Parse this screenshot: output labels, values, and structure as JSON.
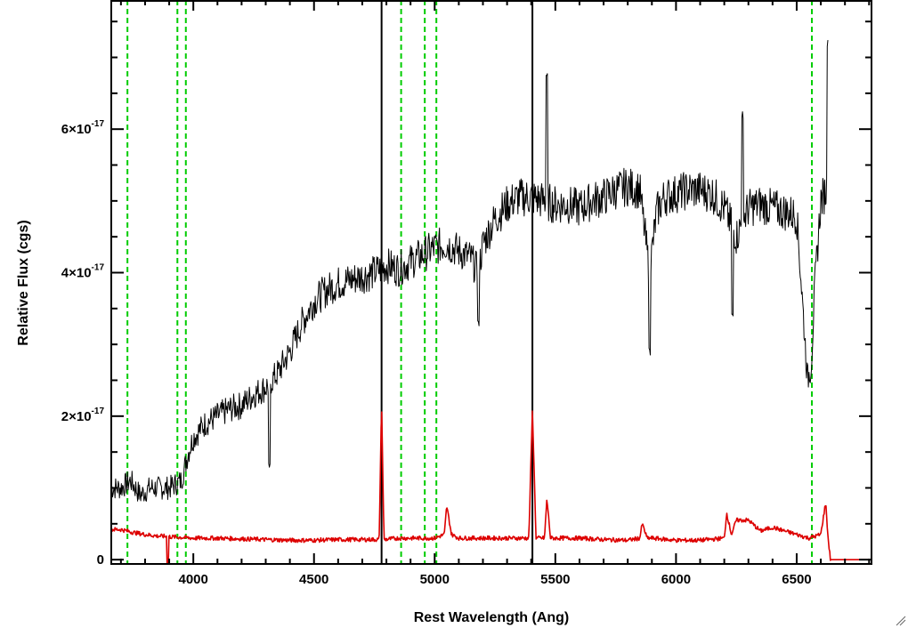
{
  "chart_data": {
    "type": "line",
    "xlabel": "Rest Wavelength (Ang)",
    "ylabel": "Relative Flux (cgs)",
    "xlim": [
      3660,
      6810
    ],
    "ylim": [
      -0.06,
      7.8
    ],
    "y_unit_exponent": -17,
    "x_ticks": [
      4000,
      4500,
      5000,
      5500,
      6000,
      6500
    ],
    "y_ticks": [
      {
        "value": 0,
        "mantissa": "0",
        "exponent": ""
      },
      {
        "value": 2,
        "mantissa": "2×10",
        "exponent": "-17"
      },
      {
        "value": 4,
        "mantissa": "4×10",
        "exponent": "-17"
      },
      {
        "value": 6,
        "mantissa": "6×10",
        "exponent": "-17"
      }
    ],
    "colors": {
      "spectrum": "#000000",
      "error": "#dd0000",
      "emission_lines": "#00cc00",
      "marker": "#000000"
    },
    "emission_line_markers": [
      3727,
      3934,
      3969,
      4861,
      4959,
      5007,
      6563
    ],
    "vertical_markers": [
      4780,
      5405
    ],
    "series": [
      {
        "role": "spectrum",
        "color": "#000000",
        "points": [
          [
            3660,
            1.0
          ],
          [
            3700,
            1.0
          ],
          [
            3740,
            1.1
          ],
          [
            3780,
            0.9
          ],
          [
            3820,
            1.0
          ],
          [
            3860,
            1.0
          ],
          [
            3900,
            1.0
          ],
          [
            3950,
            1.1
          ],
          [
            3980,
            1.5
          ],
          [
            4000,
            1.7
          ],
          [
            4050,
            1.9
          ],
          [
            4100,
            2.0
          ],
          [
            4150,
            2.1
          ],
          [
            4200,
            2.15
          ],
          [
            4250,
            2.3
          ],
          [
            4300,
            2.4
          ],
          [
            4350,
            2.6
          ],
          [
            4400,
            2.9
          ],
          [
            4450,
            3.3
          ],
          [
            4500,
            3.6
          ],
          [
            4550,
            3.75
          ],
          [
            4600,
            3.85
          ],
          [
            4650,
            3.9
          ],
          [
            4700,
            3.95
          ],
          [
            4750,
            4.0
          ],
          [
            4800,
            4.1
          ],
          [
            4850,
            4.05
          ],
          [
            4900,
            4.15
          ],
          [
            4950,
            4.25
          ],
          [
            5000,
            4.35
          ],
          [
            5050,
            4.4
          ],
          [
            5100,
            4.3
          ],
          [
            5150,
            4.2
          ],
          [
            5180,
            4.0
          ],
          [
            5200,
            4.4
          ],
          [
            5250,
            4.75
          ],
          [
            5300,
            4.95
          ],
          [
            5350,
            5.05
          ],
          [
            5400,
            5.05
          ],
          [
            5450,
            5.0
          ],
          [
            5500,
            4.95
          ],
          [
            5550,
            4.95
          ],
          [
            5600,
            4.9
          ],
          [
            5650,
            5.0
          ],
          [
            5700,
            5.05
          ],
          [
            5750,
            5.15
          ],
          [
            5800,
            5.2
          ],
          [
            5850,
            5.15
          ],
          [
            5890,
            4.0
          ],
          [
            5920,
            4.85
          ],
          [
            5950,
            5.05
          ],
          [
            6000,
            5.1
          ],
          [
            6050,
            5.15
          ],
          [
            6100,
            5.15
          ],
          [
            6150,
            5.1
          ],
          [
            6200,
            4.9
          ],
          [
            6250,
            4.5
          ],
          [
            6300,
            4.9
          ],
          [
            6350,
            4.95
          ],
          [
            6400,
            4.9
          ],
          [
            6450,
            4.85
          ],
          [
            6500,
            4.8
          ],
          [
            6520,
            3.8
          ],
          [
            6545,
            2.5
          ],
          [
            6560,
            2.7
          ],
          [
            6575,
            3.8
          ],
          [
            6600,
            5.0
          ],
          [
            6630,
            5.2
          ]
        ],
        "features": [
          {
            "x": 5465,
            "y": 6.75
          },
          {
            "x": 6275,
            "y": 6.2
          },
          {
            "x": 6630,
            "y": 7.2
          },
          {
            "x": 5890,
            "y": 2.9
          },
          {
            "x": 6235,
            "y": 3.4
          },
          {
            "x": 4316,
            "y": 1.3
          },
          {
            "x": 5180,
            "y": 3.3
          }
        ]
      },
      {
        "role": "error",
        "color": "#dd0000",
        "points": [
          [
            3660,
            0.42
          ],
          [
            3700,
            0.42
          ],
          [
            3750,
            0.38
          ],
          [
            3800,
            0.35
          ],
          [
            3850,
            0.33
          ],
          [
            3900,
            0.32
          ],
          [
            3950,
            0.31
          ],
          [
            4000,
            0.3
          ],
          [
            4100,
            0.3
          ],
          [
            4200,
            0.29
          ],
          [
            4300,
            0.28
          ],
          [
            4400,
            0.27
          ],
          [
            4500,
            0.27
          ],
          [
            4600,
            0.28
          ],
          [
            4700,
            0.28
          ],
          [
            4770,
            0.28
          ],
          [
            4780,
            2.2
          ],
          [
            4790,
            0.28
          ],
          [
            4850,
            0.3
          ],
          [
            4950,
            0.3
          ],
          [
            5000,
            0.3
          ],
          [
            5040,
            0.35
          ],
          [
            5050,
            0.75
          ],
          [
            5070,
            0.35
          ],
          [
            5100,
            0.3
          ],
          [
            5200,
            0.3
          ],
          [
            5300,
            0.3
          ],
          [
            5390,
            0.3
          ],
          [
            5405,
            2.1
          ],
          [
            5420,
            0.3
          ],
          [
            5455,
            0.3
          ],
          [
            5465,
            0.85
          ],
          [
            5480,
            0.3
          ],
          [
            5600,
            0.3
          ],
          [
            5700,
            0.28
          ],
          [
            5800,
            0.27
          ],
          [
            5850,
            0.3
          ],
          [
            5860,
            0.5
          ],
          [
            5880,
            0.3
          ],
          [
            5900,
            0.3
          ],
          [
            6000,
            0.27
          ],
          [
            6100,
            0.27
          ],
          [
            6200,
            0.3
          ],
          [
            6210,
            0.65
          ],
          [
            6230,
            0.35
          ],
          [
            6250,
            0.55
          ],
          [
            6300,
            0.55
          ],
          [
            6350,
            0.4
          ],
          [
            6400,
            0.45
          ],
          [
            6450,
            0.4
          ],
          [
            6500,
            0.35
          ],
          [
            6550,
            0.3
          ],
          [
            6600,
            0.35
          ],
          [
            6620,
            0.8
          ],
          [
            6630,
            0.3
          ],
          [
            6640,
            0.0
          ],
          [
            6810,
            0.0
          ]
        ],
        "features": [
          {
            "x": 3895,
            "y": -0.06
          }
        ]
      }
    ]
  }
}
